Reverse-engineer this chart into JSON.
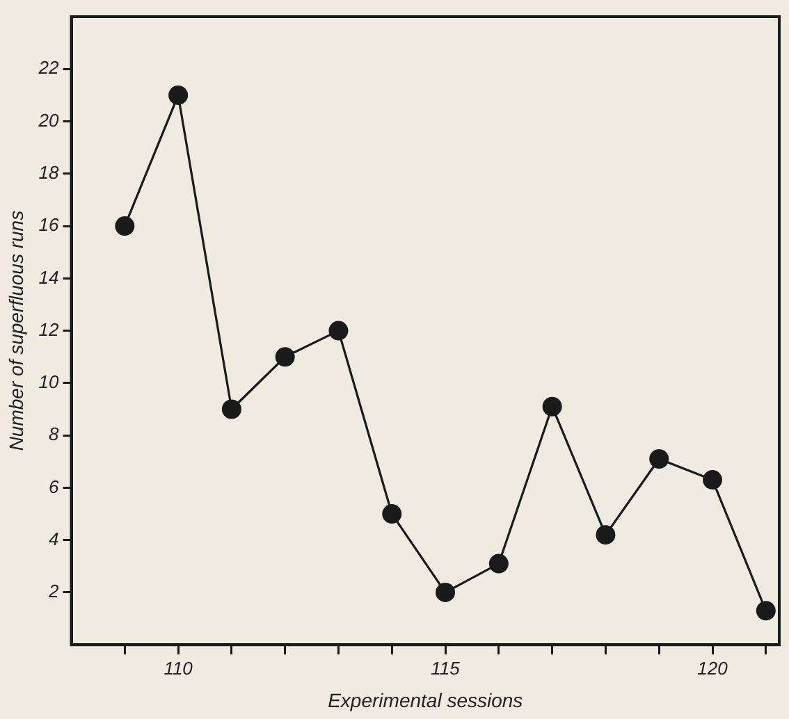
{
  "chart_data": {
    "type": "line",
    "xlabel": "Experimental sessions",
    "ylabel": "Number of superfluous runs",
    "x": [
      109,
      110,
      111,
      112,
      113,
      114,
      115,
      116,
      117,
      118,
      119,
      120,
      121
    ],
    "series": [
      {
        "color": "#1a1a1a",
        "values": [
          16,
          21,
          9,
          11,
          12,
          5,
          2,
          3.1,
          9.1,
          4.2,
          7.1,
          6.3,
          1.3
        ]
      }
    ],
    "xlim": [
      108,
      121.25
    ],
    "ylim": [
      0,
      24
    ],
    "xticks": [
      {
        "value": 109,
        "label": null
      },
      110,
      {
        "value": 111,
        "label": null
      },
      {
        "value": 112,
        "label": null
      },
      {
        "value": 113,
        "label": null
      },
      {
        "value": 114,
        "label": null
      },
      115,
      {
        "value": 116,
        "label": null
      },
      {
        "value": 117,
        "label": null
      },
      {
        "value": 118,
        "label": null
      },
      {
        "value": 119,
        "label": null
      },
      120,
      {
        "value": 121,
        "label": null
      }
    ],
    "yticks": [
      2,
      4,
      6,
      8,
      10,
      12,
      14,
      16,
      18,
      20,
      22
    ],
    "grid": false,
    "legend": false,
    "marker": "circle",
    "line_style": "solid"
  }
}
